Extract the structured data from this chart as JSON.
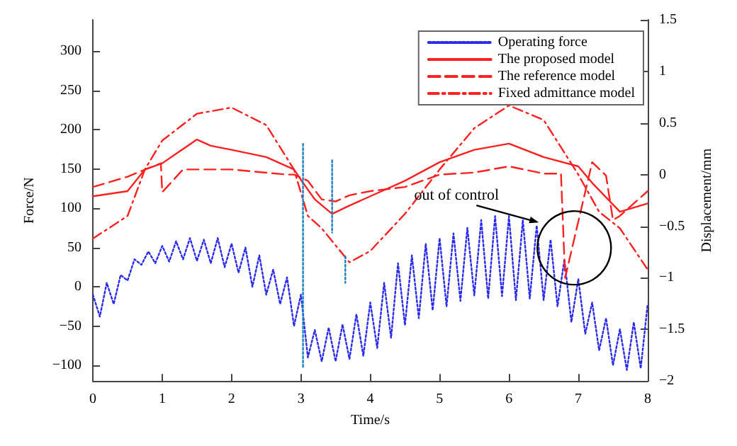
{
  "chart_data": {
    "type": "line",
    "xlabel": "Time/s",
    "ylabel": "Force/N",
    "y2label": "Displacement/mm",
    "x": [
      0,
      0.1,
      0.2,
      0.3,
      0.4,
      0.5,
      0.6,
      0.7,
      0.8,
      0.9,
      1.0,
      1.1,
      1.2,
      1.3,
      1.4,
      1.5,
      1.6,
      1.7,
      1.8,
      1.9,
      2.0,
      2.1,
      2.2,
      2.3,
      2.4,
      2.5,
      2.6,
      2.7,
      2.8,
      2.9,
      3.0,
      3.1,
      3.2,
      3.3,
      3.4,
      3.5,
      3.6,
      3.7,
      3.8,
      3.9,
      4.0,
      4.1,
      4.2,
      4.3,
      4.4,
      4.5,
      4.6,
      4.7,
      4.8,
      4.9,
      5.0,
      5.1,
      5.2,
      5.3,
      5.4,
      5.5,
      5.6,
      5.7,
      5.8,
      5.9,
      6.0,
      6.1,
      6.2,
      6.3,
      6.4,
      6.5,
      6.6,
      6.7,
      6.8,
      6.9,
      7.0,
      7.1,
      7.2,
      7.3,
      7.4,
      7.5,
      7.6,
      7.7,
      7.8,
      7.9,
      8.0
    ],
    "series": [
      {
        "name": "Operating force",
        "color": "#2b2bf0",
        "line_style": "dotted",
        "values": [
          -10,
          -38,
          5,
          -22,
          15,
          8,
          35,
          28,
          45,
          30,
          52,
          32,
          58,
          35,
          62,
          33,
          60,
          30,
          62,
          25,
          55,
          18,
          50,
          0,
          40,
          -10,
          22,
          -22,
          12,
          -50,
          -10,
          -90,
          -55,
          -95,
          -52,
          -95,
          -48,
          -92,
          -35,
          -88,
          -20,
          -78,
          5,
          -65,
          30,
          -49,
          40,
          -40,
          55,
          -30,
          62,
          -25,
          68,
          -18,
          75,
          -11,
          85,
          -15,
          90,
          -12,
          90,
          -17,
          85,
          -15,
          78,
          -17,
          60,
          -25,
          35,
          -45,
          10,
          -60,
          -20,
          -81,
          -40,
          -100,
          -54,
          -106,
          -45,
          -104,
          -22
        ]
      },
      {
        "name": "The proposed model",
        "color": "#ff2020",
        "line_style": "solid",
        "axis": "y2",
        "x": [
          0,
          0.5,
          0.75,
          1,
          1.5,
          1.7,
          2,
          2.5,
          2.9,
          3,
          3.2,
          3.45,
          3.7,
          4,
          4.5,
          5,
          5.5,
          6,
          6.5,
          7,
          7.2,
          7.6,
          8
        ],
        "values": [
          -0.21,
          -0.16,
          0.05,
          0.11,
          0.34,
          0.28,
          0.24,
          0.17,
          0.05,
          -0.05,
          -0.24,
          -0.38,
          -0.3,
          -0.21,
          -0.06,
          0.12,
          0.24,
          0.3,
          0.17,
          0.08,
          -0.08,
          -0.36,
          -0.28
        ]
      },
      {
        "name": "The reference model",
        "color": "#ff2020",
        "line_style": "dashed",
        "axis": "y2",
        "x": [
          0,
          0.5,
          0.98,
          1.0,
          1.3,
          2.0,
          2.8,
          2.9,
          3.1,
          3.3,
          3.5,
          3.7,
          4,
          4.5,
          5,
          5.5,
          6,
          6.5,
          6.75,
          6.81,
          7.2,
          7.4,
          7.5,
          7.6,
          8
        ],
        "values": [
          -0.12,
          -0.02,
          0.11,
          -0.17,
          0.05,
          0.05,
          0,
          0,
          -0.06,
          -0.24,
          -0.26,
          -0.2,
          -0.16,
          -0.12,
          0,
          0.02,
          0.08,
          0.01,
          0.01,
          -1.0,
          0.12,
          -0.01,
          -0.44,
          -0.4,
          -0.16
        ]
      },
      {
        "name": "Fixed admittance model",
        "color": "#ff2020",
        "line_style": "dashdot",
        "axis": "y2",
        "x": [
          0,
          0.5,
          0.75,
          1,
          1.5,
          2,
          2.5,
          2.9,
          3.1,
          3.3,
          3.7,
          4,
          4.5,
          5,
          5.5,
          6,
          6.5,
          7,
          7.3,
          7.6,
          8
        ],
        "values": [
          -0.62,
          -0.4,
          0.05,
          0.33,
          0.59,
          0.65,
          0.48,
          0.05,
          -0.4,
          -0.52,
          -0.85,
          -0.74,
          -0.38,
          0.05,
          0.45,
          0.67,
          0.53,
          0,
          -0.36,
          -0.52,
          -0.92
        ]
      },
      {
        "color": "#1a7fc0",
        "line_style": "dotted",
        "x": [
          3.03,
          3.03
        ],
        "values": [
          182,
          -102
        ]
      },
      {
        "color": "#1a7fc0",
        "line_style": "dotted",
        "x": [
          3.45,
          3.45
        ],
        "values": [
          161,
          69
        ]
      },
      {
        "color": "#1a7fc0",
        "line_style": "dotted",
        "x": [
          3.64,
          3.64
        ],
        "values": [
          39,
          5
        ]
      }
    ],
    "xlim": [
      0,
      8
    ],
    "xticks": [
      0,
      1,
      2,
      3,
      4,
      5,
      6,
      7,
      8
    ],
    "ylim": [
      -120,
      340
    ],
    "yticks": [
      -100,
      -50,
      0,
      50,
      100,
      150,
      200,
      250,
      300
    ],
    "y2lim": [
      -2,
      1.5
    ],
    "y2ticks": [
      -2,
      -1.5,
      -1,
      -0.5,
      0,
      0.5,
      1,
      1.5
    ],
    "annotations": [
      {
        "text": "out of control",
        "x": 6.43,
        "y": 82
      }
    ],
    "legend": "top right",
    "grid": false
  }
}
